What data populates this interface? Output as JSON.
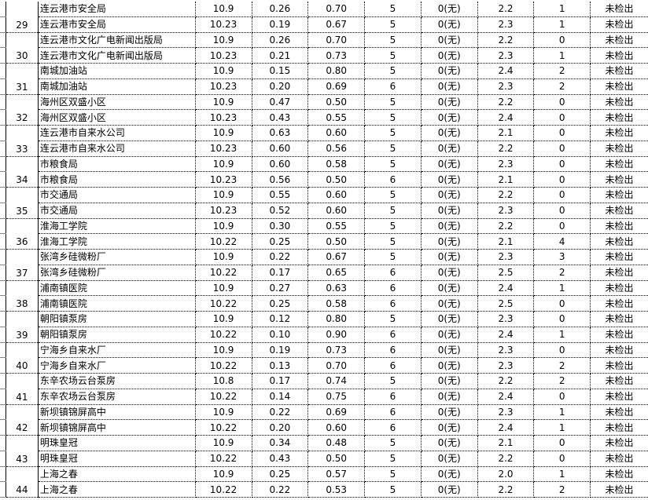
{
  "rows": [
    {
      "no": "29",
      "entries": [
        [
          "连云港市安全局",
          "10.9",
          "0.26",
          "0.70",
          "5",
          "0(无)",
          "2.2",
          "1",
          "未检出"
        ],
        [
          "连云港市安全局",
          "10.23",
          "0.19",
          "0.67",
          "5",
          "0(无)",
          "2.3",
          "1",
          "未检出"
        ]
      ]
    },
    {
      "no": "30",
      "entries": [
        [
          "连云港市文化广电新闻出版局",
          "10.9",
          "0.26",
          "0.70",
          "5",
          "0(无)",
          "2.2",
          "0",
          "未检出"
        ],
        [
          "连云港市文化广电新闻出版局",
          "10.23",
          "0.21",
          "0.73",
          "5",
          "0(无)",
          "2.3",
          "1",
          "未检出"
        ]
      ]
    },
    {
      "no": "31",
      "entries": [
        [
          "南城加油站",
          "10.9",
          "0.15",
          "0.80",
          "5",
          "0(无)",
          "2.4",
          "2",
          "未检出"
        ],
        [
          "南城加油站",
          "10.23",
          "0.20",
          "0.69",
          "6",
          "0(无)",
          "2.3",
          "2",
          "未检出"
        ]
      ]
    },
    {
      "no": "32",
      "entries": [
        [
          "海州区双盛小区",
          "10.9",
          "0.47",
          "0.50",
          "5",
          "0(无)",
          "2.2",
          "0",
          "未检出"
        ],
        [
          "海州区双盛小区",
          "10.23",
          "0.43",
          "0.55",
          "5",
          "0(无)",
          "2.4",
          "0",
          "未检出"
        ]
      ]
    },
    {
      "no": "33",
      "entries": [
        [
          "连云港市自来水公司",
          "10.9",
          "0.63",
          "0.60",
          "5",
          "0(无)",
          "2.1",
          "0",
          "未检出"
        ],
        [
          "连云港市自来水公司",
          "10.23",
          "0.60",
          "0.56",
          "5",
          "0(无)",
          "2.2",
          "0",
          "未检出"
        ]
      ]
    },
    {
      "no": "34",
      "entries": [
        [
          "市粮食局",
          "10.9",
          "0.60",
          "0.58",
          "5",
          "0(无)",
          "2.3",
          "0",
          "未检出"
        ],
        [
          "市粮食局",
          "10.23",
          "0.56",
          "0.50",
          "6",
          "0(无)",
          "2.1",
          "0",
          "未检出"
        ]
      ]
    },
    {
      "no": "35",
      "entries": [
        [
          "市交通局",
          "10.9",
          "0.55",
          "0.60",
          "5",
          "0(无)",
          "2.2",
          "0",
          "未检出"
        ],
        [
          "市交通局",
          "10.23",
          "0.52",
          "0.60",
          "5",
          "0(无)",
          "2.3",
          "0",
          "未检出"
        ]
      ]
    },
    {
      "no": "36",
      "entries": [
        [
          "淮海工学院",
          "10.9",
          "0.30",
          "0.55",
          "5",
          "0(无)",
          "2.2",
          "0",
          "未检出"
        ],
        [
          "淮海工学院",
          "10.22",
          "0.25",
          "0.50",
          "5",
          "0(无)",
          "2.1",
          "4",
          "未检出"
        ]
      ]
    },
    {
      "no": "37",
      "entries": [
        [
          "张湾乡硅微粉厂",
          "10.9",
          "0.22",
          "0.67",
          "5",
          "0(无)",
          "2.3",
          "3",
          "未检出"
        ],
        [
          "张湾乡硅微粉厂",
          "10.22",
          "0.17",
          "0.65",
          "6",
          "0(无)",
          "2.5",
          "2",
          "未检出"
        ]
      ]
    },
    {
      "no": "38",
      "entries": [
        [
          "浦南镇医院",
          "10.9",
          "0.27",
          "0.63",
          "6",
          "0(无)",
          "2.4",
          "1",
          "未检出"
        ],
        [
          "浦南镇医院",
          "10.22",
          "0.25",
          "0.58",
          "6",
          "0(无)",
          "2.5",
          "0",
          "未检出"
        ]
      ]
    },
    {
      "no": "39",
      "entries": [
        [
          "朝阳镇泵房",
          "10.9",
          "0.12",
          "0.80",
          "5",
          "0(无)",
          "2.3",
          "0",
          "未检出"
        ],
        [
          "朝阳镇泵房",
          "10.22",
          "0.10",
          "0.90",
          "6",
          "0(无)",
          "2.4",
          "1",
          "未检出"
        ]
      ]
    },
    {
      "no": "40",
      "entries": [
        [
          "宁海乡自来水厂",
          "10.9",
          "0.19",
          "0.73",
          "6",
          "0(无)",
          "2.3",
          "0",
          "未检出"
        ],
        [
          "宁海乡自来水厂",
          "10.22",
          "0.13",
          "0.70",
          "6",
          "0(无)",
          "2.3",
          "2",
          "未检出"
        ]
      ]
    },
    {
      "no": "41",
      "entries": [
        [
          "东辛农场云台泵房",
          "10.8",
          "0.17",
          "0.74",
          "5",
          "0(无)",
          "2.2",
          "2",
          "未检出"
        ],
        [
          "东辛农场云台泵房",
          "10.22",
          "0.14",
          "0.75",
          "6",
          "0(无)",
          "2.4",
          "0",
          "未检出"
        ]
      ]
    },
    {
      "no": "42",
      "entries": [
        [
          "新坝镇锦屏高中",
          "10.9",
          "0.22",
          "0.69",
          "6",
          "0(无)",
          "2.3",
          "1",
          "未检出"
        ],
        [
          "新坝镇锦屏高中",
          "10.22",
          "0.20",
          "0.60",
          "6",
          "0(无)",
          "2.4",
          "1",
          "未检出"
        ]
      ]
    },
    {
      "no": "43",
      "entries": [
        [
          "明珠皇冠",
          "10.9",
          "0.34",
          "0.48",
          "5",
          "0(无)",
          "2.1",
          "0",
          "未检出"
        ],
        [
          "明珠皇冠",
          "10.22",
          "0.43",
          "0.50",
          "5",
          "0(无)",
          "2.2",
          "0",
          "未检出"
        ]
      ]
    },
    {
      "no": "44",
      "entries": [
        [
          "上海之春",
          "10.9",
          "0.25",
          "0.57",
          "5",
          "0(无)",
          "2.0",
          "1",
          "未检出"
        ],
        [
          "上海之春",
          "10.22",
          "0.22",
          "0.53",
          "5",
          "0(无)",
          "2.2",
          "2",
          "未检出"
        ]
      ]
    }
  ]
}
